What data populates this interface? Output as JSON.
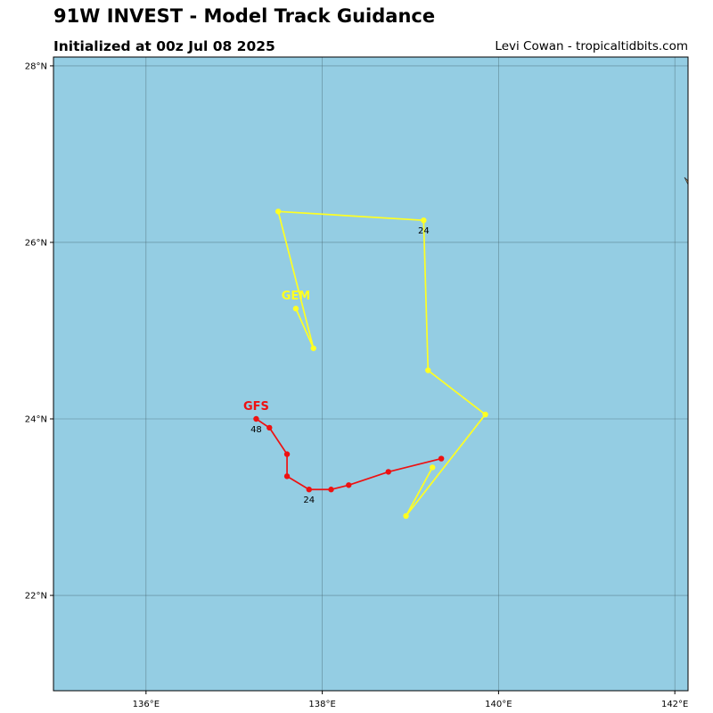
{
  "header": {
    "title": "91W INVEST - Model Track Guidance",
    "subtitle": "Initialized at 00z Jul 08 2025",
    "credit": "Levi Cowan - tropicaltidbits.com"
  },
  "map": {
    "ocean_color": "#94cde3",
    "land_color": "#c8a064",
    "gridline_color": "#4a6a74",
    "lon_range": [
      134.95,
      142.15
    ],
    "lat_range": [
      20.92,
      28.1
    ],
    "lon_ticks": [
      136,
      138,
      140,
      142
    ],
    "lat_ticks": [
      22,
      24,
      26,
      28
    ],
    "lon_tick_labels": [
      "136°E",
      "138°E",
      "140°E",
      "142°E"
    ],
    "lat_tick_labels": [
      "22°N",
      "24°N",
      "26°N",
      "28°N"
    ]
  },
  "tracks": [
    {
      "name": "GEM",
      "color": "#ffff22",
      "points": [
        {
          "lon": 139.25,
          "lat": 23.45
        },
        {
          "lon": 138.95,
          "lat": 22.9
        },
        {
          "lon": 139.85,
          "lat": 24.05
        },
        {
          "lon": 139.2,
          "lat": 24.55
        },
        {
          "lon": 139.15,
          "lat": 26.25
        },
        {
          "lon": 137.5,
          "lat": 26.35
        },
        {
          "lon": 137.9,
          "lat": 24.8
        },
        {
          "lon": 137.7,
          "lat": 25.25
        }
      ],
      "point_labels": [
        {
          "index": 4,
          "text": "24"
        }
      ]
    },
    {
      "name": "GFS",
      "color": "#ee1111",
      "points": [
        {
          "lon": 139.35,
          "lat": 23.55
        },
        {
          "lon": 138.75,
          "lat": 23.4
        },
        {
          "lon": 138.3,
          "lat": 23.25
        },
        {
          "lon": 138.1,
          "lat": 23.2
        },
        {
          "lon": 137.85,
          "lat": 23.2
        },
        {
          "lon": 137.6,
          "lat": 23.35
        },
        {
          "lon": 137.6,
          "lat": 23.6
        },
        {
          "lon": 137.4,
          "lat": 23.9
        },
        {
          "lon": 137.25,
          "lat": 24.0
        }
      ],
      "point_labels": [
        {
          "index": 4,
          "text": "24"
        },
        {
          "index": 8,
          "text": "48"
        }
      ]
    }
  ]
}
